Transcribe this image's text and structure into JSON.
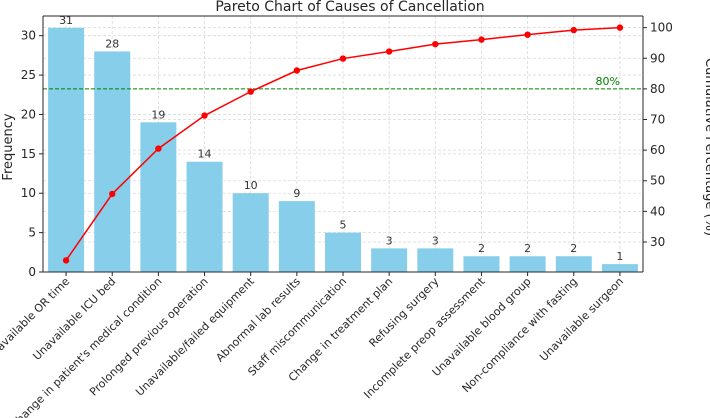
{
  "chart_data": {
    "type": "bar",
    "title": "Pareto Chart of Causes of Cancellation",
    "xlabel": "",
    "ylabel": "Frequency",
    "y2label": "Cumulative Percentage (%)",
    "categories": [
      "Unavailable OR time",
      "Unavailable ICU bed",
      "Change in patient's medical condition",
      "Prolonged previous operation",
      "Unavailable/failed equipment",
      "Abnormal lab results",
      "Staff miscommunication",
      "Change in treatment plan",
      "Refusing surgery",
      "Incomplete preop assessment",
      "Unavailable blood group",
      "Non-compliance with fasting",
      "Unavailable surgeon"
    ],
    "values": [
      31,
      28,
      19,
      14,
      10,
      9,
      5,
      3,
      3,
      2,
      2,
      2,
      1
    ],
    "cumulative_percent": [
      24.0,
      45.7,
      60.5,
      71.3,
      79.1,
      86.0,
      89.9,
      92.2,
      94.6,
      96.1,
      97.7,
      99.2,
      100.0
    ],
    "ylim": [
      0,
      32.5
    ],
    "yticks": [
      0,
      5,
      10,
      15,
      20,
      25,
      30
    ],
    "y2lim": [
      20.2,
      103.8
    ],
    "y2ticks": [
      30,
      40,
      50,
      60,
      70,
      80,
      90,
      100
    ],
    "reference_line": {
      "value": 80,
      "label": "80%"
    },
    "grid": true,
    "colors": {
      "bars": "#87ceeb",
      "line": "#ff0000",
      "reference": "#008000",
      "grid": "#d9d9d9"
    }
  }
}
